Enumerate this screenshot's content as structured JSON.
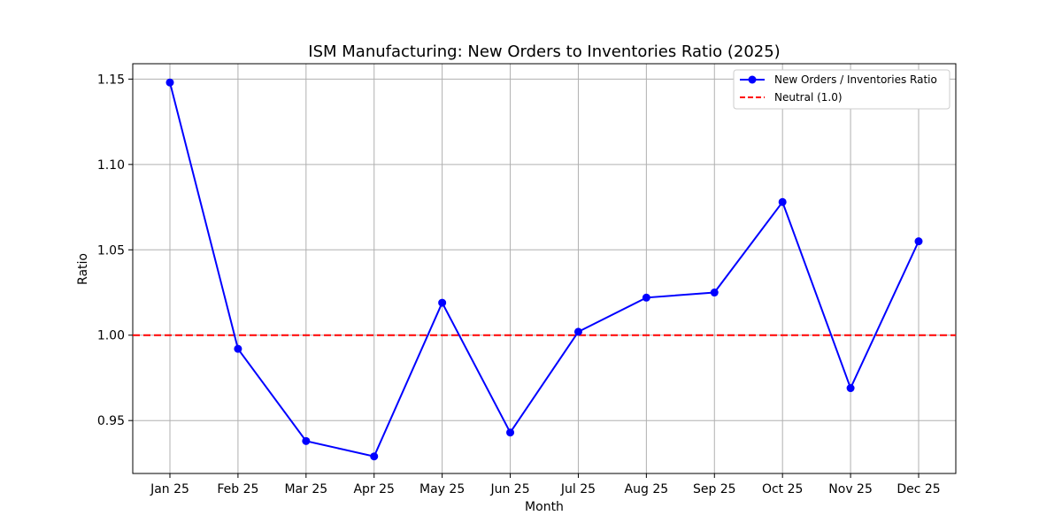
{
  "chart_data": {
    "type": "line",
    "title": "ISM Manufacturing: New Orders to Inventories Ratio (2025)",
    "xlabel": "Month",
    "ylabel": "Ratio",
    "categories": [
      "Jan 25",
      "Feb 25",
      "Mar 25",
      "Apr 25",
      "May 25",
      "Jun 25",
      "Jul 25",
      "Aug 25",
      "Sep 25",
      "Oct 25",
      "Nov 25",
      "Dec 25"
    ],
    "series": [
      {
        "name": "New Orders / Inventories Ratio",
        "color": "#0000ff",
        "values": [
          1.148,
          0.992,
          0.938,
          0.929,
          1.019,
          0.943,
          1.002,
          1.022,
          1.025,
          1.078,
          0.969,
          1.055
        ]
      }
    ],
    "reference_line": {
      "name": "Neutral (1.0)",
      "value": 1.0,
      "color": "#ff0000",
      "style": "dashed"
    },
    "ylim": [
      0.919,
      1.159
    ],
    "yticks": [
      0.95,
      1.0,
      1.05,
      1.1,
      1.15
    ],
    "ytick_labels": [
      "0.95",
      "1.00",
      "1.05",
      "1.10",
      "1.15"
    ],
    "grid": true,
    "legend": {
      "location": "upper right",
      "entries": [
        "New Orders / Inventories Ratio",
        "Neutral (1.0)"
      ]
    }
  }
}
